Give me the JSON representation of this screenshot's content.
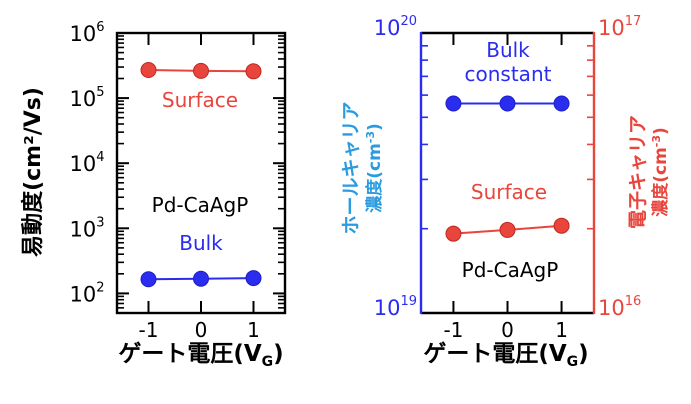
{
  "chart_data": [
    {
      "type": "line",
      "y_scale": "log",
      "xlabel_main": "ゲート電圧(V",
      "xlabel_sub": "G",
      "xlabel_end": ")",
      "ylabel": "易動度(cm²/Vs)",
      "x_ticks": [
        "-1",
        "0",
        "1"
      ],
      "xlim": [
        -1.6,
        1.6
      ],
      "ylim": [
        50,
        1000000
      ],
      "y_tick_labels": [
        {
          "base": "10",
          "exp": "2",
          "value": 100
        },
        {
          "base": "10",
          "exp": "3",
          "value": 1000
        },
        {
          "base": "10",
          "exp": "4",
          "value": 10000
        },
        {
          "base": "10",
          "exp": "5",
          "value": 100000
        },
        {
          "base": "10",
          "exp": "6",
          "value": 1000000
        }
      ],
      "series": [
        {
          "name": "Surface",
          "color": "#e8453c",
          "x": [
            -1,
            0,
            1
          ],
          "y": [
            270000,
            262000,
            258000
          ]
        },
        {
          "name": "Bulk",
          "color": "#2a2cf0",
          "x": [
            -1,
            0,
            1
          ],
          "y": [
            165,
            168,
            172
          ]
        }
      ],
      "annotation": "Pd-CaAgP"
    },
    {
      "type": "line",
      "y_scale": "log",
      "xlabel_main": "ゲート電圧(V",
      "xlabel_sub": "G",
      "xlabel_end": ")",
      "ylabel_left_line1": "ホールキャリア",
      "ylabel_left_line2": "濃度(cm",
      "ylabel_left_exp": "-3",
      "ylabel_left_end": ")",
      "ylabel_right_line1": "電子キャリア",
      "ylabel_right_line2": "濃度(cm",
      "ylabel_right_exp": "-3",
      "ylabel_right_end": ")",
      "x_ticks": [
        "-1",
        "0",
        "1"
      ],
      "xlim": [
        -1.6,
        1.6
      ],
      "left_axis": {
        "color": "#2a2cf0",
        "ylim": [
          10000000000000000000,
          100000000000000000000
        ],
        "tick_labels": [
          {
            "base": "10",
            "exp": "19"
          },
          {
            "base": "10",
            "exp": "20"
          }
        ]
      },
      "right_axis": {
        "color": "#e8453c",
        "ylim": [
          10000000000000000,
          100000000000000000
        ],
        "tick_labels": [
          {
            "base": "10",
            "exp": "16"
          },
          {
            "base": "10",
            "exp": "17"
          }
        ]
      },
      "series": [
        {
          "name": "Bulk constant",
          "label_line1": "Bulk",
          "label_line2": "constant",
          "axis": "left",
          "color": "#2a2cf0",
          "x": [
            -1,
            0,
            1
          ],
          "y": [
            56000000000000000000,
            56000000000000000000,
            56000000000000000000
          ]
        },
        {
          "name": "Surface",
          "axis": "right",
          "color": "#e8453c",
          "x": [
            -1,
            0,
            1
          ],
          "y": [
            19200000000000000,
            19800000000000000,
            20500000000000000
          ]
        }
      ],
      "annotation": "Pd-CaAgP"
    }
  ]
}
